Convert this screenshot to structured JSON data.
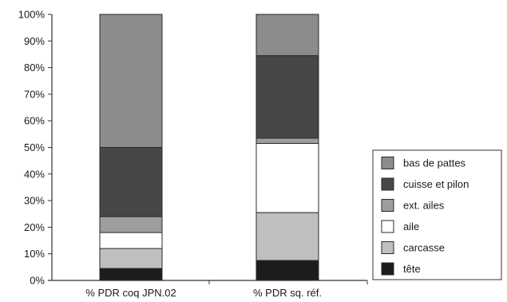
{
  "chart_data": {
    "type": "bar",
    "stacked": true,
    "percent": true,
    "categories": [
      "% PDR coq JPN.02",
      "% PDR sq. réf."
    ],
    "ylim": [
      0,
      100
    ],
    "yticks": [
      "0%",
      "10%",
      "20%",
      "30%",
      "40%",
      "50%",
      "60%",
      "70%",
      "80%",
      "90%",
      "100%"
    ],
    "grid": false,
    "legend_position": "right",
    "series": [
      {
        "name": "tête",
        "values": [
          4.5,
          7.5
        ],
        "color": "#1c1c1c"
      },
      {
        "name": "carcasse",
        "values": [
          7.5,
          18
        ],
        "color": "#bfbfbf"
      },
      {
        "name": "aile",
        "values": [
          6,
          26
        ],
        "color": "#ffffff"
      },
      {
        "name": "ext. ailes",
        "values": [
          6,
          2
        ],
        "color": "#9e9e9e"
      },
      {
        "name": "cuisse et pilon",
        "values": [
          26,
          31
        ],
        "color": "#474747"
      },
      {
        "name": "bas de pattes",
        "values": [
          50,
          15.5
        ],
        "color": "#8c8c8c"
      }
    ]
  }
}
